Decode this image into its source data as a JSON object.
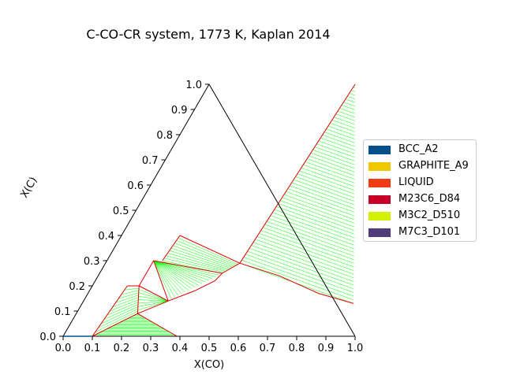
{
  "chart_data": {
    "type": "ternary-phase-diagram",
    "title": "C-CO-CR system, 1773 K, Kaplan 2014",
    "xlabel": "X(CO)",
    "ylabel": "X(C)",
    "x_ticks": [
      "0.0",
      "0.1",
      "0.2",
      "0.3",
      "0.4",
      "0.5",
      "0.6",
      "0.7",
      "0.8",
      "0.9",
      "1.0"
    ],
    "y_ticks": [
      "0.0",
      "0.1",
      "0.2",
      "0.3",
      "0.4",
      "0.5",
      "0.6",
      "0.7",
      "0.8",
      "0.9",
      "1.0"
    ],
    "xlim": [
      0,
      1
    ],
    "ylim": [
      0,
      1
    ],
    "legend_position": "right",
    "legend": [
      {
        "name": "BCC_A2",
        "color": "#00508c"
      },
      {
        "name": "GRAPHITE_A9",
        "color": "#f0c800"
      },
      {
        "name": "LIQUID",
        "color": "#f03c14"
      },
      {
        "name": "M23C6_D84",
        "color": "#c80028"
      },
      {
        "name": "M3C2_D510",
        "color": "#d2f000"
      },
      {
        "name": "M7C3_D101",
        "color": "#503c78"
      }
    ],
    "boundary_color": "#e00000",
    "tieline_color": "#00ff00",
    "boundaries": [
      [
        [
          0.46,
          0.29
        ],
        [
          0.5,
          1.0
        ]
      ],
      [
        [
          0.46,
          0.29
        ],
        [
          0.62,
          0.24
        ],
        [
          0.79,
          0.17
        ],
        [
          0.93,
          0.13
        ]
      ],
      [
        [
          0.2,
          0.4
        ],
        [
          0.46,
          0.29
        ]
      ],
      [
        [
          0.2,
          0.4
        ],
        [
          0.19,
          0.3
        ]
      ],
      [
        [
          0.16,
          0.3
        ],
        [
          0.42,
          0.25
        ]
      ],
      [
        [
          0.42,
          0.25
        ],
        [
          0.46,
          0.29
        ]
      ],
      [
        [
          0.42,
          0.25
        ],
        [
          0.41,
          0.22
        ],
        [
          0.36,
          0.18
        ],
        [
          0.29,
          0.14
        ]
      ],
      [
        [
          0.16,
          0.3
        ],
        [
          0.29,
          0.14
        ]
      ],
      [
        [
          0.16,
          0.3
        ],
        [
          0.16,
          0.2
        ]
      ],
      [
        [
          0.16,
          0.2
        ],
        [
          0.29,
          0.14
        ]
      ],
      [
        [
          0.16,
          0.2
        ],
        [
          0.12,
          0.2
        ]
      ],
      [
        [
          0.12,
          0.2
        ],
        [
          0.1,
          0.0
        ]
      ],
      [
        [
          0.16,
          0.2
        ],
        [
          0.21,
          0.09
        ]
      ],
      [
        [
          0.21,
          0.09
        ],
        [
          0.29,
          0.14
        ]
      ],
      [
        [
          0.21,
          0.09
        ],
        [
          0.1,
          0.0
        ]
      ],
      [
        [
          0.21,
          0.09
        ],
        [
          0.39,
          0.0
        ]
      ]
    ],
    "tieline_fans": [
      {
        "a1": [
          0.5,
          1.0
        ],
        "a2": [
          0.46,
          0.29
        ],
        "b1": [
          0.5,
          1.0
        ],
        "b2": [
          0.93,
          0.13
        ],
        "count": 60
      },
      {
        "a1": [
          0.2,
          0.4
        ],
        "a2": [
          0.19,
          0.3
        ],
        "b1": [
          0.46,
          0.29
        ],
        "b2": [
          0.42,
          0.25
        ],
        "count": 10
      },
      {
        "a1": [
          0.16,
          0.3
        ],
        "a2": [
          0.16,
          0.3
        ],
        "b1": [
          0.42,
          0.25
        ],
        "b2": [
          0.29,
          0.14
        ],
        "count": 16
      },
      {
        "a1": [
          0.16,
          0.2
        ],
        "a2": [
          0.21,
          0.09
        ],
        "b1": [
          0.29,
          0.14
        ],
        "b2": [
          0.29,
          0.14
        ],
        "count": 8
      },
      {
        "a1": [
          0.12,
          0.2
        ],
        "a2": [
          0.1,
          0.0
        ],
        "b1": [
          0.16,
          0.2
        ],
        "b2": [
          0.21,
          0.09
        ],
        "count": 12
      },
      {
        "a1": [
          0.21,
          0.09
        ],
        "a2": [
          0.1,
          0.0
        ],
        "b1": [
          0.21,
          0.09
        ],
        "b2": [
          0.39,
          0.0
        ],
        "count": 22
      }
    ]
  }
}
